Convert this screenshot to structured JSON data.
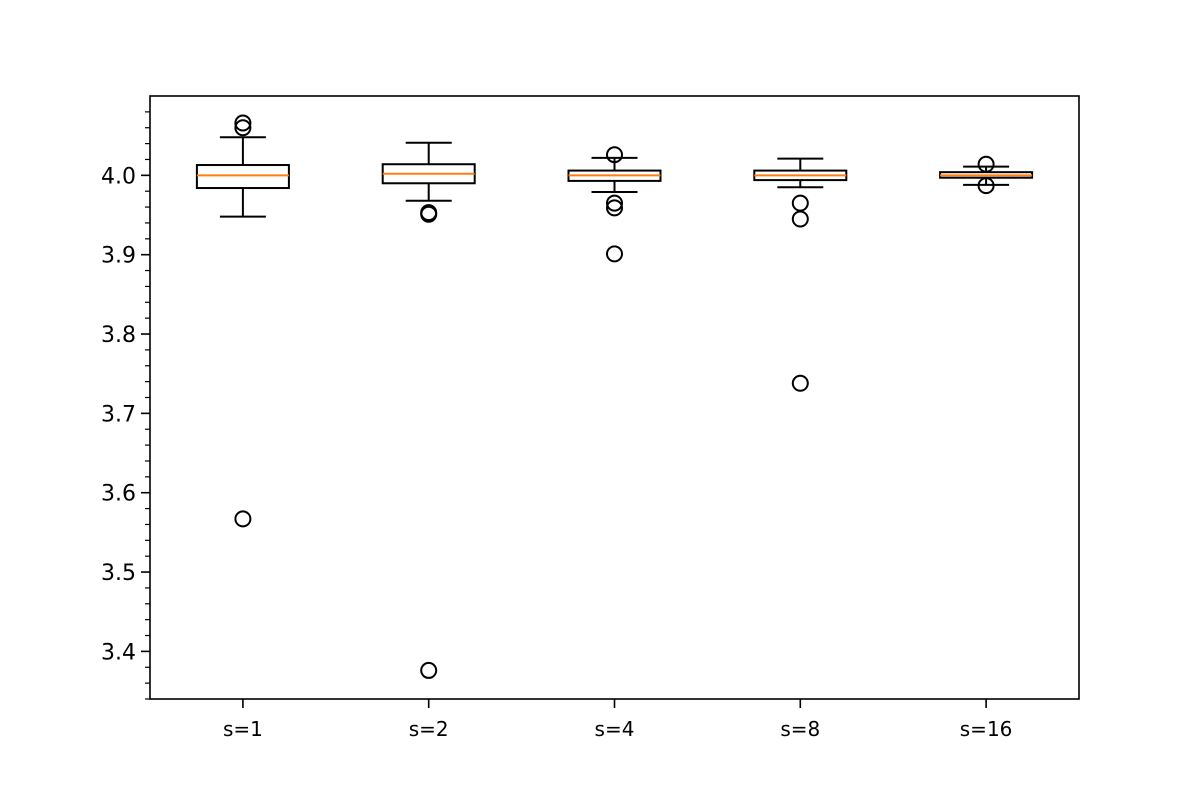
{
  "chart_data": {
    "type": "box",
    "title": "",
    "xlabel": "",
    "ylabel": "",
    "categories": [
      "s=1",
      "s=2",
      "s=4",
      "s=8",
      "s=16"
    ],
    "ylim": [
      3.34,
      4.1
    ],
    "yticks": [
      3.4,
      3.5,
      3.6,
      3.7,
      3.8,
      3.9,
      4.0
    ],
    "ytick_labels": [
      "3.4",
      "3.5",
      "3.6",
      "3.7",
      "3.8",
      "3.9",
      "4.0"
    ],
    "y_minor_ticks": true,
    "grid": false,
    "boxes": [
      {
        "category": "s=1",
        "whisker_low": 3.948,
        "q1": 3.984,
        "median": 4.0,
        "q3": 4.013,
        "whisker_high": 4.048,
        "outliers": [
          4.066,
          4.06,
          3.567
        ]
      },
      {
        "category": "s=2",
        "whisker_low": 3.968,
        "q1": 3.99,
        "median": 4.002,
        "q3": 4.014,
        "whisker_high": 4.041,
        "outliers": [
          3.953,
          3.951,
          3.376
        ]
      },
      {
        "category": "s=4",
        "whisker_low": 3.979,
        "q1": 3.993,
        "median": 4.0,
        "q3": 4.006,
        "whisker_high": 4.022,
        "outliers": [
          4.026,
          3.965,
          3.959,
          3.901
        ]
      },
      {
        "category": "s=8",
        "whisker_low": 3.985,
        "q1": 3.994,
        "median": 4.0,
        "q3": 4.006,
        "whisker_high": 4.021,
        "outliers": [
          3.965,
          3.945,
          3.738
        ]
      },
      {
        "category": "s=16",
        "whisker_low": 3.988,
        "q1": 3.997,
        "median": 4.0,
        "q3": 4.004,
        "whisker_high": 4.011,
        "outliers": [
          4.014,
          3.987
        ]
      }
    ],
    "colors": {
      "box": "#000000",
      "median": "#ff7f0e",
      "outlier": "#000000",
      "background": "#ffffff"
    }
  }
}
